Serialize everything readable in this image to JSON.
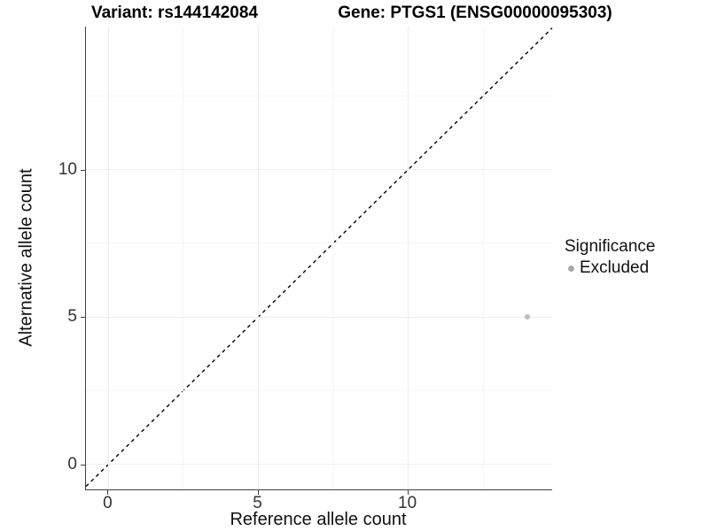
{
  "chart_data": {
    "type": "scatter",
    "titles": {
      "left": "Variant: rs144142084",
      "right": "Gene: PTGS1 (ENSG00000095303)"
    },
    "xlabel": "Reference allele count",
    "ylabel": "Alternative allele count",
    "xlim": [
      -0.75,
      14.8
    ],
    "ylim": [
      -0.85,
      14.85
    ],
    "x_ticks": {
      "major": [
        0,
        5,
        10
      ],
      "minor": [
        2.5,
        7.5,
        12.5
      ]
    },
    "y_ticks": {
      "major": [
        0,
        5,
        10
      ],
      "minor": [
        2.5,
        7.5,
        12.5
      ]
    },
    "grid": true,
    "identity_line": {
      "slope": 1,
      "intercept": 0,
      "style": "dashed",
      "color": "#000000"
    },
    "series": [
      {
        "name": "Excluded",
        "color": "#bdbdbd",
        "points": [
          {
            "x": 14,
            "y": 5
          }
        ]
      }
    ],
    "legend": {
      "title": "Significance",
      "position": "right",
      "entries": [
        {
          "label": "Excluded",
          "color": "#a8a8a8"
        }
      ]
    }
  },
  "colors": {
    "background": "#ffffff",
    "grid_major": "#ececec",
    "grid_minor": "#f5f5f5",
    "axis": "#404040",
    "identity_line": "#000000"
  }
}
